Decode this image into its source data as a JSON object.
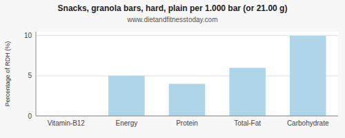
{
  "chart_data": {
    "type": "bar",
    "title": "Snacks, granola bars, hard, plain per 1.000 bar (or 21.00 g)",
    "subtitle": "www.dietandfitnesstoday.com",
    "categories": [
      "Vitamin-B12",
      "Energy",
      "Protein",
      "Total-Fat",
      "Carbohydrate"
    ],
    "values": [
      0,
      5,
      4,
      6,
      10
    ],
    "color": "#aed6e8",
    "ylabel": "Percentage of RDH (%)",
    "ylim": [
      0,
      10.5
    ],
    "yticks": [
      0,
      5,
      10
    ],
    "grid": true
  }
}
